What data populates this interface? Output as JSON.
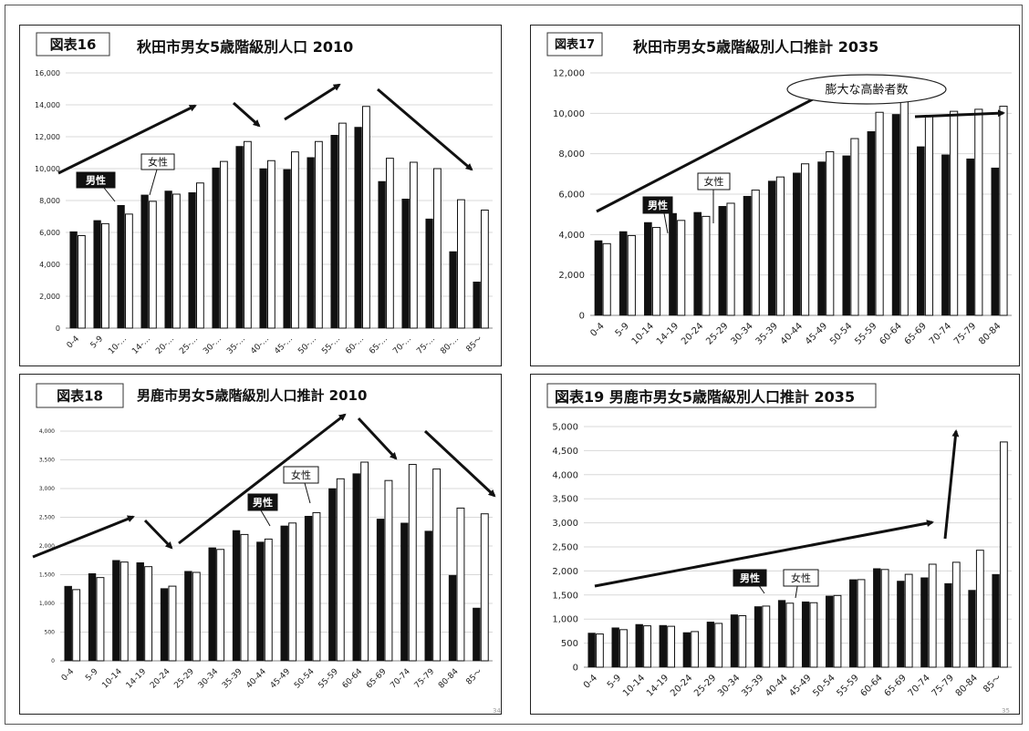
{
  "chart_data": [
    {
      "type": "bar",
      "figure_label": "図表16",
      "title": "秋田市男女5歳階級別人口 2010",
      "categories": [
        "0-4",
        "5-9",
        "10-…",
        "14-…",
        "20-…",
        "25-…",
        "30-…",
        "35-…",
        "40-…",
        "45-…",
        "50-…",
        "55-…",
        "60-…",
        "65-…",
        "70-…",
        "75-…",
        "80-…",
        "85～"
      ],
      "series": [
        {
          "name": "男性",
          "values": [
            6050,
            6750,
            7700,
            8350,
            8600,
            8500,
            10050,
            11400,
            10000,
            9950,
            10700,
            12100,
            12600,
            9200,
            8100,
            6850,
            4800,
            2900
          ]
        },
        {
          "name": "女性",
          "values": [
            5800,
            6550,
            7150,
            7950,
            8400,
            9100,
            10450,
            11700,
            10500,
            11050,
            11700,
            12850,
            13900,
            10650,
            10400,
            10000,
            8050,
            7400
          ]
        }
      ],
      "ylim": [
        0,
        16000
      ],
      "yticks": [
        "0",
        "2,000",
        "4,000",
        "6,000",
        "8,000",
        "10,000",
        "12,000",
        "14,000",
        "16,000"
      ],
      "grid": true,
      "annotations": []
    },
    {
      "type": "bar",
      "figure_label": "図表17",
      "title": "秋田市男女5歳階級別人口推計 2035",
      "categories": [
        "0-4",
        "5-9",
        "10-14",
        "14-19",
        "20-24",
        "25-29",
        "30-34",
        "35-39",
        "40-44",
        "45-49",
        "50-54",
        "55-59",
        "60-64",
        "65-69",
        "70-74",
        "75-79",
        "80-84"
      ],
      "series": [
        {
          "name": "男性",
          "values": [
            3700,
            4150,
            4600,
            5050,
            5100,
            5400,
            5900,
            6650,
            7050,
            7600,
            7900,
            9100,
            9950,
            8350,
            7950,
            7750,
            7300
          ]
        },
        {
          "name": "女性",
          "values": [
            3550,
            3950,
            4350,
            4700,
            4900,
            5550,
            6200,
            6850,
            7500,
            8100,
            8750,
            10050,
            11050,
            9850,
            10100,
            10200,
            10350
          ]
        }
      ],
      "ylim": [
        0,
        12000
      ],
      "yticks": [
        "0",
        "2,000",
        "4,000",
        "6,000",
        "8,000",
        "10,000",
        "12,000"
      ],
      "grid": true,
      "annotations": [
        "膨大な高齢者数"
      ]
    },
    {
      "type": "bar",
      "figure_label": "図表18",
      "title": "男鹿市男女5歳階級別人口推計 2010",
      "categories": [
        "0-4",
        "5-9",
        "10-14",
        "14-19",
        "20-24",
        "25-29",
        "30-34",
        "35-39",
        "40-44",
        "45-49",
        "50-54",
        "55-59",
        "60-64",
        "65-69",
        "70-74",
        "75-79",
        "80-84",
        "85～"
      ],
      "series": [
        {
          "name": "男性",
          "values": [
            1300,
            1520,
            1750,
            1710,
            1260,
            1560,
            1970,
            2270,
            2070,
            2350,
            2520,
            3000,
            3260,
            2470,
            2400,
            2260,
            1490,
            920
          ]
        },
        {
          "name": "女性",
          "values": [
            1240,
            1450,
            1720,
            1640,
            1300,
            1540,
            1940,
            2200,
            2120,
            2400,
            2580,
            3170,
            3460,
            3140,
            3420,
            3340,
            2660,
            2560
          ]
        }
      ],
      "ylim": [
        0,
        4000
      ],
      "yticks": [
        "0",
        "500",
        "1,000",
        "1,500",
        "2,000",
        "2,500",
        "3,000",
        "3,500",
        "4,000"
      ],
      "grid": true,
      "annotations": []
    },
    {
      "type": "bar",
      "figure_label": "図表19",
      "title": "男鹿市男女5歳階級別人口推計 2035",
      "categories": [
        "0-4",
        "5-9",
        "10-14",
        "14-19",
        "20-24",
        "25-29",
        "30-34",
        "35-39",
        "40-44",
        "45-49",
        "50-54",
        "55-59",
        "60-64",
        "65-69",
        "70-74",
        "75-79",
        "80-84",
        "85～"
      ],
      "series": [
        {
          "name": "男性",
          "values": [
            710,
            820,
            890,
            870,
            720,
            940,
            1090,
            1260,
            1390,
            1360,
            1480,
            1820,
            2050,
            1790,
            1860,
            1740,
            1600,
            1930
          ]
        },
        {
          "name": "女性",
          "values": [
            690,
            780,
            860,
            850,
            740,
            910,
            1070,
            1270,
            1330,
            1340,
            1490,
            1820,
            2030,
            1930,
            2140,
            2180,
            2430,
            4680
          ]
        }
      ],
      "ylim": [
        0,
        5000
      ],
      "yticks": [
        "0",
        "500",
        "1,000",
        "1,500",
        "2,000",
        "2,500",
        "3,000",
        "3,500",
        "4,000",
        "4,500",
        "5,000"
      ],
      "grid": true,
      "annotations": []
    }
  ],
  "page_numbers": [
    "34",
    "35"
  ]
}
